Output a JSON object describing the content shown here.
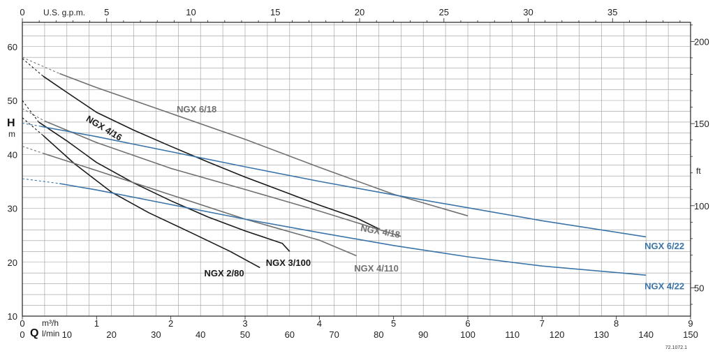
{
  "chart_data": {
    "type": "line",
    "title": "",
    "grid": true,
    "xlabel": "Q",
    "x_unit_primary": "m³/h",
    "x_unit_secondary": "l/min",
    "x_unit_top": "U.S. g.p.m.",
    "xlim": [
      0,
      9
    ],
    "x_ticks": [
      "0",
      "1",
      "2",
      "3",
      "4",
      "5",
      "6",
      "7",
      "8",
      "9"
    ],
    "x_ticks_lmin": [
      "0",
      "10",
      "20",
      "30",
      "40",
      "50",
      "60",
      "70",
      "80",
      "90",
      "100",
      "110",
      "120",
      "130",
      "140",
      "150"
    ],
    "x_ticks_gpm": [
      "0",
      "5",
      "10",
      "15",
      "20",
      "25",
      "30",
      "35"
    ],
    "ylabel": "H",
    "y_unit": "m",
    "ylim": [
      10,
      64.5
    ],
    "y_ticks": [
      "10",
      "20",
      "30",
      "40",
      "50",
      "60"
    ],
    "y_unit_right": "ft",
    "y_ticks_ft": [
      "50",
      "100",
      "150",
      "200"
    ],
    "code": "72.1072.1",
    "series": [
      {
        "name": "NGX 6/18",
        "color": "#707070",
        "extrapolated": [
          [
            0.0,
            58.0
          ],
          [
            0.5,
            55.0
          ]
        ],
        "points": [
          [
            0.5,
            55.0
          ],
          [
            1.0,
            52.4
          ],
          [
            2.0,
            47.6
          ],
          [
            3.0,
            42.8
          ],
          [
            4.0,
            37.6
          ],
          [
            5.0,
            32.6
          ],
          [
            6.0,
            28.6
          ]
        ],
        "label_pos": [
          2.08,
          47.8
        ],
        "label_angle": 0
      },
      {
        "name": "NGX 4/16",
        "color": "#1a1a1a",
        "extrapolated": [
          [
            0.0,
            57.8
          ],
          [
            0.28,
            54.5
          ]
        ],
        "points": [
          [
            0.28,
            54.5
          ],
          [
            0.6,
            51.5
          ],
          [
            1.0,
            47.8
          ],
          [
            1.5,
            44.5
          ],
          [
            2.0,
            41.5
          ],
          [
            2.5,
            38.6
          ],
          [
            3.0,
            35.8
          ],
          [
            3.5,
            33.2
          ],
          [
            4.0,
            30.6
          ],
          [
            4.5,
            28.2
          ],
          [
            4.8,
            26.2
          ]
        ],
        "label_pos": [
          0.85,
          46.3
        ],
        "label_angle": 31
      },
      {
        "name": "NGX 4/18",
        "color": "#707070",
        "extrapolated": [
          [
            0.0,
            48.5
          ],
          [
            0.3,
            46.2
          ]
        ],
        "points": [
          [
            0.3,
            46.2
          ],
          [
            1.0,
            42.2
          ],
          [
            2.0,
            37.4
          ],
          [
            3.0,
            33.5
          ],
          [
            4.0,
            29.5
          ],
          [
            5.1,
            24.8
          ]
        ],
        "label_pos": [
          4.55,
          25.8
        ],
        "label_angle": 10
      },
      {
        "name": "NGX 3/100",
        "color": "#1a1a1a",
        "extrapolated": [
          [
            0.0,
            50.0
          ],
          [
            0.22,
            46.0
          ]
        ],
        "points": [
          [
            0.22,
            46.0
          ],
          [
            0.6,
            42.5
          ],
          [
            1.0,
            38.5
          ],
          [
            1.5,
            34.7
          ],
          [
            2.0,
            31.4
          ],
          [
            2.5,
            28.4
          ],
          [
            3.0,
            25.8
          ],
          [
            3.5,
            23.5
          ],
          [
            3.6,
            22.0
          ]
        ],
        "label_pos": [
          3.28,
          19.3
        ],
        "label_angle": 0
      },
      {
        "name": "NGX 2/80",
        "color": "#1a1a1a",
        "extrapolated": [
          [
            0.0,
            46.8
          ],
          [
            0.28,
            43.5
          ]
        ],
        "points": [
          [
            0.28,
            43.5
          ],
          [
            0.7,
            38.3
          ],
          [
            1.2,
            33.0
          ],
          [
            1.7,
            29.2
          ],
          [
            2.3,
            25.3
          ],
          [
            2.8,
            22.0
          ],
          [
            3.2,
            19.0
          ]
        ],
        "label_pos": [
          2.45,
          17.4
        ],
        "label_angle": 0
      },
      {
        "name": "NGX 4/110",
        "color": "#707070",
        "extrapolated": [
          [
            0.0,
            41.5
          ],
          [
            0.28,
            40.2
          ]
        ],
        "points": [
          [
            0.28,
            40.2
          ],
          [
            1.0,
            37.0
          ],
          [
            2.0,
            32.5
          ],
          [
            3.0,
            28.0
          ],
          [
            4.0,
            24.1
          ],
          [
            4.5,
            21.2
          ]
        ],
        "label_pos": [
          4.47,
          18.3
        ],
        "label_angle": 0
      },
      {
        "name": "NGX 6/22",
        "color": "#3a74a8",
        "extrapolated": [
          [
            0.0,
            45.8
          ],
          [
            0.25,
            45.2
          ]
        ],
        "points": [
          [
            0.25,
            45.2
          ],
          [
            1.0,
            43.3
          ],
          [
            2.0,
            40.5
          ],
          [
            3.0,
            37.7
          ],
          [
            4.0,
            35.0
          ],
          [
            5.0,
            32.5
          ],
          [
            6.0,
            30.1
          ],
          [
            7.0,
            27.7
          ],
          [
            8.4,
            24.7
          ]
        ],
        "label_pos": [
          8.38,
          22.4
        ],
        "label_angle": 0
      },
      {
        "name": "NGX 4/22",
        "color": "#3a74a8",
        "extrapolated": [
          [
            0.0,
            35.5
          ],
          [
            0.5,
            34.6
          ]
        ],
        "points": [
          [
            0.5,
            34.6
          ],
          [
            1.0,
            33.4
          ],
          [
            2.0,
            30.7
          ],
          [
            3.0,
            28.0
          ],
          [
            4.0,
            25.5
          ],
          [
            5.0,
            23.1
          ],
          [
            6.0,
            21.0
          ],
          [
            7.0,
            19.3
          ],
          [
            8.4,
            17.6
          ]
        ],
        "label_pos": [
          8.38,
          15.0
        ],
        "label_angle": 0
      }
    ]
  }
}
